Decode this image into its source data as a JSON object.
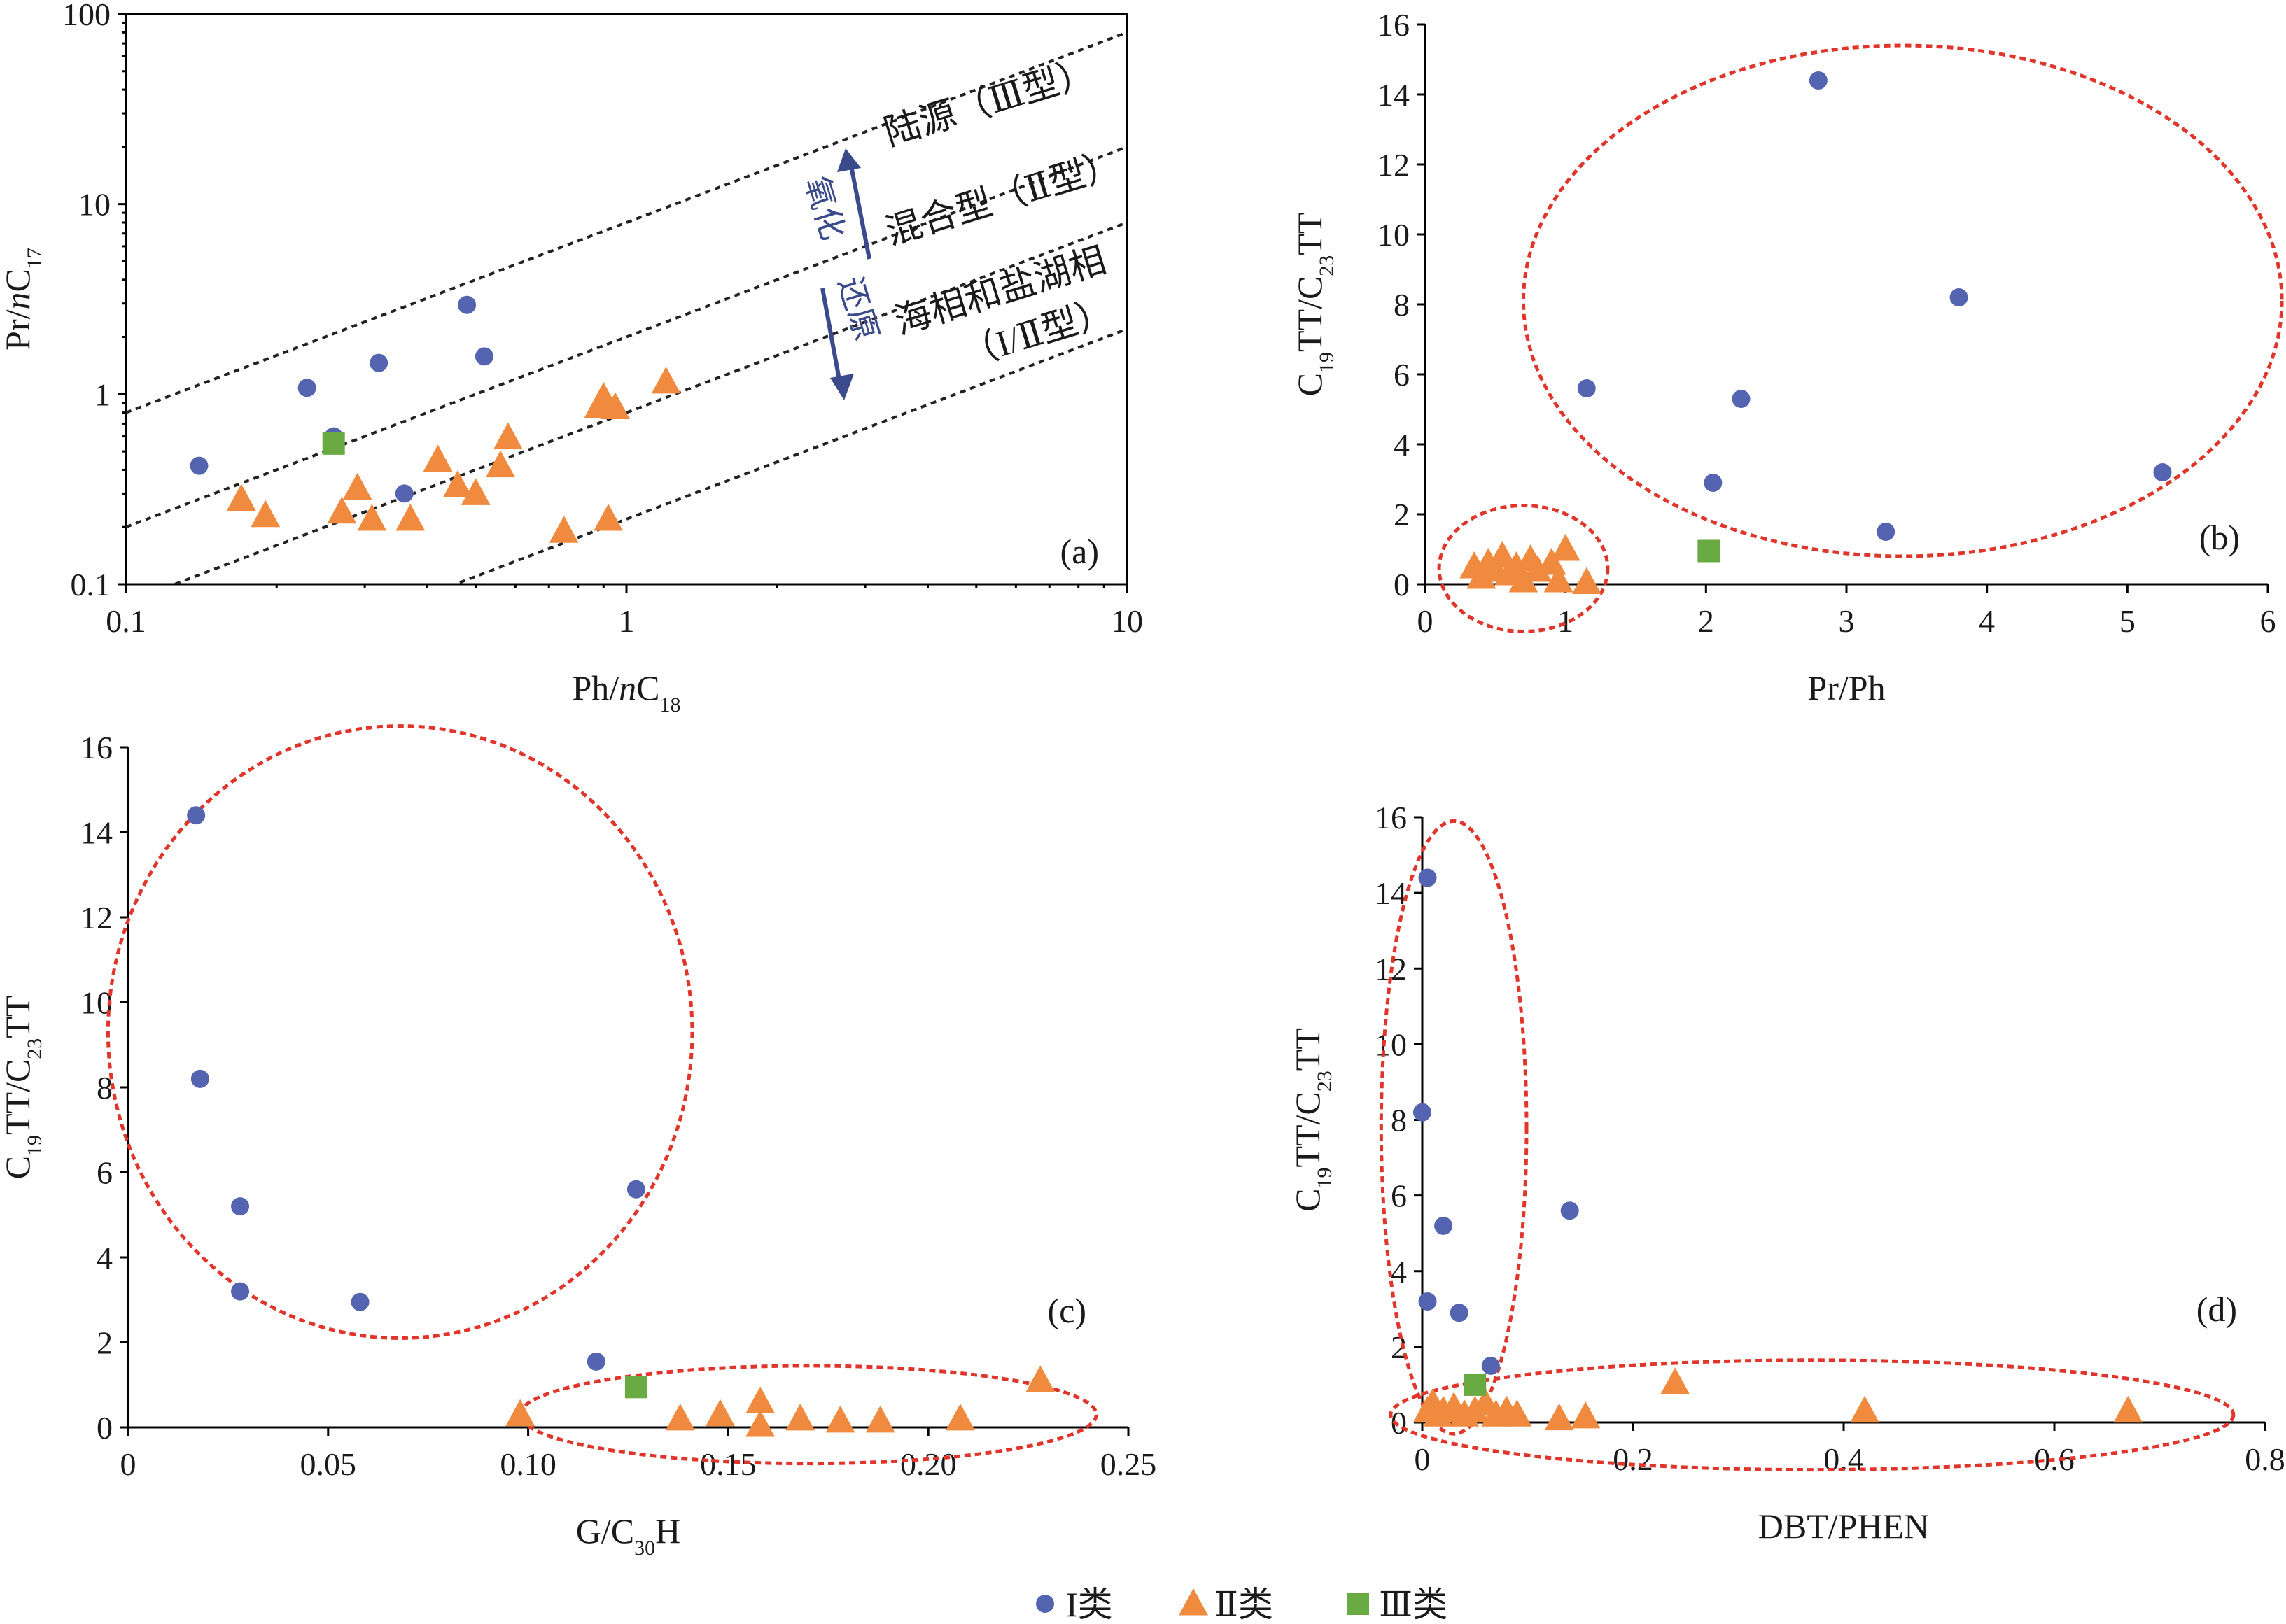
{
  "colors": {
    "class1": "#5464b0",
    "class2": "#f08a3e",
    "class3": "#6aaa42",
    "ellipse": "#e0352b",
    "dashed_line": "#222222",
    "arrow": "#3b4a8a"
  },
  "legend": {
    "items": [
      {
        "label": "I类",
        "marker": "circle",
        "color": "#5464b0"
      },
      {
        "label": "Ⅱ类",
        "marker": "triangle",
        "color": "#f08a3e"
      },
      {
        "label": "Ⅲ类",
        "marker": "square",
        "color": "#6aaa42"
      }
    ]
  },
  "chart_data": [
    {
      "panel": "a",
      "type": "scatter",
      "panel_label": "(a)",
      "xlabel": "Ph/nC18",
      "ylabel": "Pr/nC17",
      "xscale": "log",
      "yscale": "log",
      "xlim": [
        0.1,
        10
      ],
      "ylim": [
        0.1,
        100
      ],
      "xticks": [
        0.1,
        1,
        10
      ],
      "xtick_labels": [
        "0.1",
        "1",
        "10"
      ],
      "yticks": [
        0.1,
        1,
        10,
        100
      ],
      "ytick_labels": [
        "0.1",
        "1",
        "10",
        "100"
      ],
      "boundary_lines_pr_ph_ratio": [
        8,
        2,
        0.8,
        0.22
      ],
      "zones": [
        "陆源（Ⅲ型）",
        "混合型（Ⅱ型）",
        "海相和盐湖相",
        "（I/Ⅱ型）"
      ],
      "direction_labels": {
        "up": "氧化",
        "down": "还原"
      },
      "series": [
        {
          "name": "I类",
          "marker": "circle",
          "points": [
            [
              0.14,
              0.42
            ],
            [
              0.23,
              1.08
            ],
            [
              0.26,
              0.6
            ],
            [
              0.32,
              1.46
            ],
            [
              0.36,
              0.3
            ],
            [
              0.48,
              2.95
            ],
            [
              0.52,
              1.58
            ]
          ]
        },
        {
          "name": "Ⅱ类",
          "marker": "triangle",
          "points": [
            [
              0.17,
              0.28
            ],
            [
              0.19,
              0.23
            ],
            [
              0.27,
              0.24
            ],
            [
              0.29,
              0.32
            ],
            [
              0.31,
              0.22
            ],
            [
              0.37,
              0.22
            ],
            [
              0.42,
              0.45
            ],
            [
              0.46,
              0.33
            ],
            [
              0.5,
              0.3
            ],
            [
              0.56,
              0.42
            ],
            [
              0.58,
              0.59
            ],
            [
              0.75,
              0.19
            ],
            [
              0.88,
              0.86
            ],
            [
              0.9,
              0.96
            ],
            [
              0.92,
              0.22
            ],
            [
              0.95,
              0.85
            ],
            [
              1.2,
              1.16
            ]
          ]
        },
        {
          "name": "Ⅲ类",
          "marker": "square",
          "points": [
            [
              0.26,
              0.55
            ]
          ]
        }
      ]
    },
    {
      "panel": "b",
      "type": "scatter",
      "panel_label": "(b)",
      "xlabel": "Pr/Ph",
      "ylabel": "C19TT/C23TT",
      "xlim": [
        0,
        6
      ],
      "ylim": [
        0,
        16
      ],
      "xticks": [
        0,
        1,
        2,
        3,
        4,
        5,
        6
      ],
      "yticks": [
        0,
        2,
        4,
        6,
        8,
        10,
        12,
        14,
        16
      ],
      "series": [
        {
          "name": "I类",
          "marker": "circle",
          "points": [
            [
              1.15,
              5.6
            ],
            [
              2.05,
              2.9
            ],
            [
              2.25,
              5.3
            ],
            [
              2.8,
              14.4
            ],
            [
              3.28,
              1.5
            ],
            [
              3.8,
              8.2
            ],
            [
              5.25,
              3.2
            ]
          ]
        },
        {
          "name": "Ⅱ类",
          "marker": "triangle",
          "points": [
            [
              0.35,
              0.5
            ],
            [
              0.4,
              0.2
            ],
            [
              0.45,
              0.6
            ],
            [
              0.5,
              0.4
            ],
            [
              0.55,
              0.8
            ],
            [
              0.6,
              0.3
            ],
            [
              0.65,
              0.5
            ],
            [
              0.7,
              0.1
            ],
            [
              0.75,
              0.7
            ],
            [
              0.8,
              0.4
            ],
            [
              0.9,
              0.6
            ],
            [
              0.95,
              0.1
            ],
            [
              1.0,
              1.0
            ],
            [
              1.15,
              0.05
            ]
          ]
        },
        {
          "name": "Ⅲ类",
          "marker": "square",
          "points": [
            [
              2.02,
              0.95
            ]
          ]
        }
      ],
      "ellipses": [
        {
          "cx": 0.7,
          "cy": 0.45,
          "rx": 0.6,
          "ry": 1.8
        },
        {
          "cx": 3.4,
          "cy": 8.1,
          "rx": 2.7,
          "ry": 7.3
        }
      ]
    },
    {
      "panel": "c",
      "type": "scatter",
      "panel_label": "(c)",
      "xlabel": "G/C30H",
      "ylabel": "C19TT/C23TT",
      "xlim": [
        0,
        0.25
      ],
      "ylim": [
        0,
        16
      ],
      "xticks": [
        0,
        0.05,
        0.1,
        0.15,
        0.2,
        0.25
      ],
      "xtick_labels": [
        "0",
        "0.05",
        "0.10",
        "0.15",
        "0.20",
        "0.25"
      ],
      "yticks": [
        0,
        2,
        4,
        6,
        8,
        10,
        12,
        14,
        16
      ],
      "series": [
        {
          "name": "I类",
          "marker": "circle",
          "points": [
            [
              0.017,
              14.4
            ],
            [
              0.018,
              8.2
            ],
            [
              0.028,
              5.2
            ],
            [
              0.028,
              3.2
            ],
            [
              0.058,
              2.95
            ],
            [
              0.117,
              1.55
            ],
            [
              0.127,
              5.6
            ]
          ]
        },
        {
          "name": "Ⅱ类",
          "marker": "triangle",
          "points": [
            [
              0.098,
              0.3
            ],
            [
              0.138,
              0.2
            ],
            [
              0.148,
              0.3
            ],
            [
              0.158,
              0.6
            ],
            [
              0.158,
              0.05
            ],
            [
              0.168,
              0.2
            ],
            [
              0.178,
              0.15
            ],
            [
              0.188,
              0.15
            ],
            [
              0.208,
              0.2
            ],
            [
              0.228,
              1.1
            ]
          ]
        },
        {
          "name": "Ⅲ类",
          "marker": "square",
          "points": [
            [
              0.127,
              0.95
            ]
          ]
        }
      ],
      "ellipses": [
        {
          "cx": 0.068,
          "cy": 9.3,
          "rx": 0.073,
          "ry": 7.2
        },
        {
          "cx": 0.17,
          "cy": 0.3,
          "rx": 0.072,
          "ry": 1.15
        }
      ]
    },
    {
      "panel": "d",
      "type": "scatter",
      "panel_label": "(d)",
      "xlabel": "DBT/PHEN",
      "ylabel": "C19TT/C23TT",
      "xlim": [
        0,
        0.8
      ],
      "ylim": [
        0,
        16
      ],
      "xticks": [
        0,
        0.2,
        0.4,
        0.6,
        0.8
      ],
      "xtick_labels": [
        "0",
        "0.2",
        "0.4",
        "0.6",
        "0.8"
      ],
      "yticks": [
        0,
        2,
        4,
        6,
        8,
        10,
        12,
        14,
        16
      ],
      "series": [
        {
          "name": "I类",
          "marker": "circle",
          "points": [
            [
              0.005,
              14.4
            ],
            [
              0.0,
              8.2
            ],
            [
              0.02,
              5.2
            ],
            [
              0.005,
              3.2
            ],
            [
              0.035,
              2.9
            ],
            [
              0.065,
              1.5
            ],
            [
              0.14,
              5.6
            ]
          ]
        },
        {
          "name": "Ⅱ类",
          "marker": "triangle",
          "points": [
            [
              0.005,
              0.3
            ],
            [
              0.01,
              0.5
            ],
            [
              0.015,
              0.2
            ],
            [
              0.02,
              0.3
            ],
            [
              0.03,
              0.4
            ],
            [
              0.04,
              0.2
            ],
            [
              0.05,
              0.3
            ],
            [
              0.06,
              0.5
            ],
            [
              0.07,
              0.2
            ],
            [
              0.08,
              0.3
            ],
            [
              0.09,
              0.2
            ],
            [
              0.13,
              0.1
            ],
            [
              0.155,
              0.15
            ],
            [
              0.24,
              1.05
            ],
            [
              0.42,
              0.3
            ],
            [
              0.67,
              0.3
            ]
          ]
        },
        {
          "name": "Ⅲ类",
          "marker": "square",
          "points": [
            [
              0.05,
              1.0
            ]
          ]
        }
      ],
      "ellipses": [
        {
          "cx": 0.03,
          "cy": 7.8,
          "rx": 0.069,
          "ry": 8.1
        },
        {
          "cx": 0.37,
          "cy": 0.2,
          "rx": 0.4,
          "ry": 1.45
        }
      ]
    }
  ]
}
